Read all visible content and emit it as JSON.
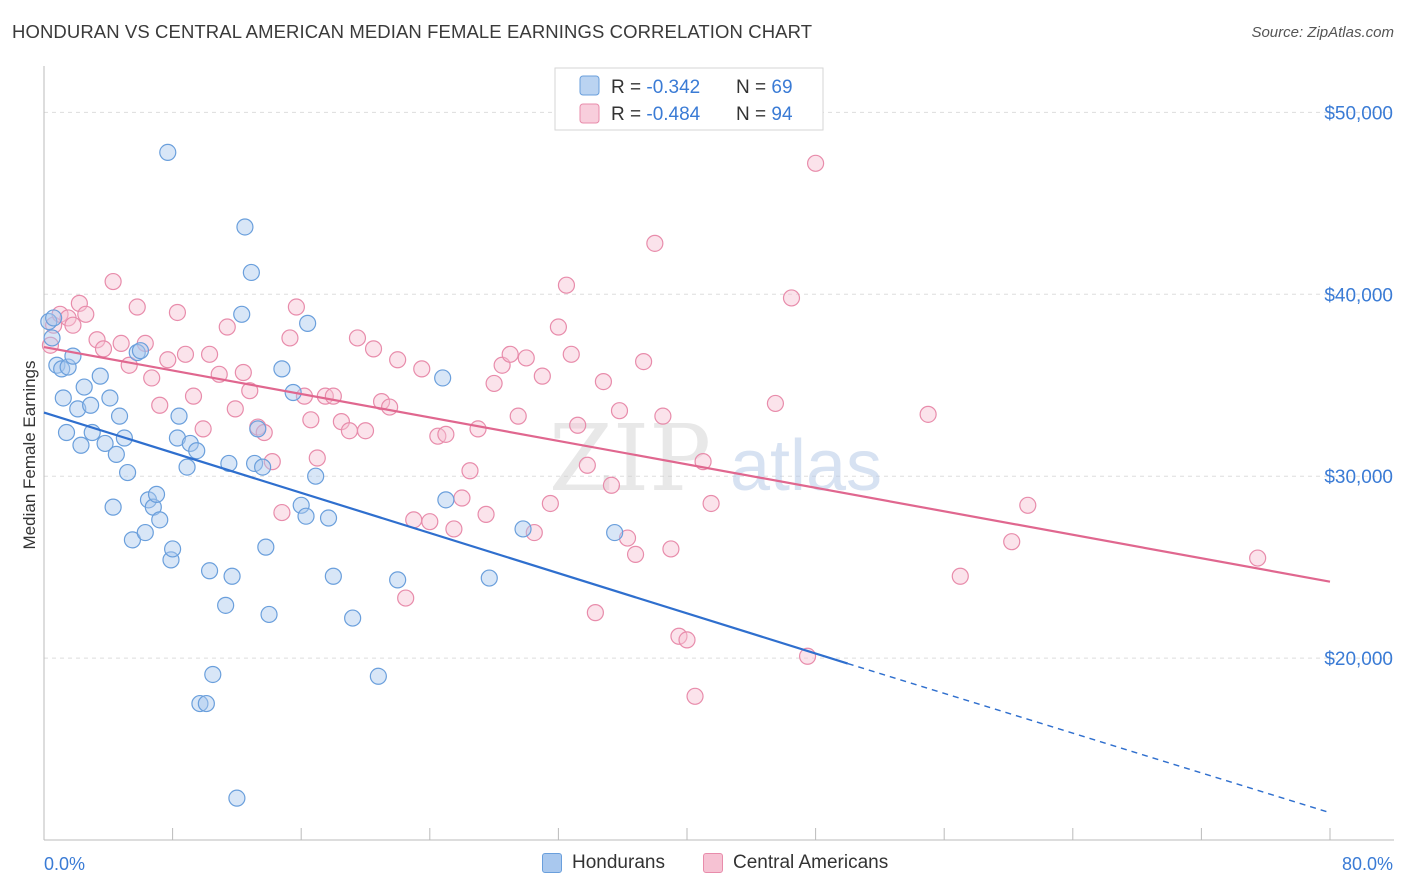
{
  "header": {
    "title": "HONDURAN VS CENTRAL AMERICAN MEDIAN FEMALE EARNINGS CORRELATION CHART",
    "source": "Source: ZipAtlas.com"
  },
  "watermark": {
    "zip": "ZIP",
    "atlas": "atlas"
  },
  "legend_top": [
    {
      "r_label": "R = ",
      "r_value": "-0.342",
      "n_label": "N = ",
      "n_value": "69"
    },
    {
      "r_label": "R = ",
      "r_value": "-0.484",
      "n_label": "N = ",
      "n_value": "94"
    }
  ],
  "legend_bottom": [
    {
      "label": "Hondurans"
    },
    {
      "label": "Central Americans"
    }
  ],
  "colors": {
    "blue_stroke": "#6a9fdc",
    "blue_fill": "#a9c8ee",
    "blue_line": "#2f6fce",
    "pink_stroke": "#e88cab",
    "pink_fill": "#f6c2d3",
    "pink_line": "#e0678f",
    "value_text": "#3a7bd5",
    "grid": "#dddddd"
  },
  "chart_data": {
    "type": "scatter",
    "title": "HONDURAN VS CENTRAL AMERICAN MEDIAN FEMALE EARNINGS CORRELATION CHART",
    "xlabel": "",
    "ylabel": "Median Female Earnings",
    "xlim": [
      0,
      80
    ],
    "ylim": [
      10000,
      52000
    ],
    "x_tick_labels": [
      "0.0%",
      "80.0%"
    ],
    "y_ticks": [
      20000,
      30000,
      40000,
      50000
    ],
    "y_tick_labels": [
      "$20,000",
      "$30,000",
      "$40,000",
      "$50,000"
    ],
    "grid": true,
    "legend_position": "top-center",
    "series": [
      {
        "name": "Hondurans",
        "r": -0.342,
        "n": 69,
        "trend": {
          "x0": 0,
          "y0": 33500,
          "x1": 50,
          "y1": 19700,
          "dash_to_x": 80,
          "dash_to_y": 11500
        },
        "points": [
          [
            0.3,
            38500
          ],
          [
            0.5,
            37600
          ],
          [
            0.6,
            38700
          ],
          [
            0.8,
            36100
          ],
          [
            1.1,
            35900
          ],
          [
            1.2,
            34300
          ],
          [
            1.4,
            32400
          ],
          [
            1.5,
            36000
          ],
          [
            1.8,
            36600
          ],
          [
            2.1,
            33700
          ],
          [
            2.3,
            31700
          ],
          [
            2.5,
            34900
          ],
          [
            2.9,
            33900
          ],
          [
            3.0,
            32400
          ],
          [
            3.5,
            35500
          ],
          [
            3.8,
            31800
          ],
          [
            4.1,
            34300
          ],
          [
            4.3,
            28300
          ],
          [
            4.5,
            31200
          ],
          [
            4.7,
            33300
          ],
          [
            5.0,
            32100
          ],
          [
            5.2,
            30200
          ],
          [
            5.5,
            26500
          ],
          [
            5.8,
            36800
          ],
          [
            6.0,
            36900
          ],
          [
            6.3,
            26900
          ],
          [
            6.5,
            28700
          ],
          [
            6.8,
            28300
          ],
          [
            7.0,
            29000
          ],
          [
            7.2,
            27600
          ],
          [
            7.7,
            47800
          ],
          [
            7.9,
            25400
          ],
          [
            8.0,
            26000
          ],
          [
            8.3,
            32100
          ],
          [
            8.4,
            33300
          ],
          [
            8.9,
            30500
          ],
          [
            9.1,
            31800
          ],
          [
            9.5,
            31400
          ],
          [
            9.7,
            17500
          ],
          [
            10.1,
            17500
          ],
          [
            10.3,
            24800
          ],
          [
            10.5,
            19100
          ],
          [
            11.3,
            22900
          ],
          [
            11.5,
            30700
          ],
          [
            11.7,
            24500
          ],
          [
            12.0,
            12300
          ],
          [
            12.3,
            38900
          ],
          [
            12.5,
            43700
          ],
          [
            12.9,
            41200
          ],
          [
            13.1,
            30700
          ],
          [
            13.3,
            32600
          ],
          [
            13.6,
            30500
          ],
          [
            13.8,
            26100
          ],
          [
            14.0,
            22400
          ],
          [
            14.8,
            35900
          ],
          [
            15.5,
            34600
          ],
          [
            16.0,
            28400
          ],
          [
            16.3,
            27800
          ],
          [
            16.4,
            38400
          ],
          [
            16.9,
            30000
          ],
          [
            17.7,
            27700
          ],
          [
            18.0,
            24500
          ],
          [
            22.0,
            24300
          ],
          [
            24.8,
            35400
          ],
          [
            25.0,
            28700
          ],
          [
            27.7,
            24400
          ],
          [
            19.2,
            22200
          ],
          [
            20.8,
            19000
          ],
          [
            29.8,
            27100
          ],
          [
            35.5,
            26900
          ]
        ]
      },
      {
        "name": "Central Americans",
        "r": -0.484,
        "n": 94,
        "trend": {
          "x0": 0,
          "y0": 37100,
          "x1": 80,
          "y1": 24200
        },
        "points": [
          [
            0.4,
            37200
          ],
          [
            0.6,
            38300
          ],
          [
            1.0,
            38900
          ],
          [
            1.5,
            38700
          ],
          [
            1.8,
            38300
          ],
          [
            2.2,
            39500
          ],
          [
            2.6,
            38900
          ],
          [
            3.3,
            37500
          ],
          [
            3.7,
            37000
          ],
          [
            4.3,
            40700
          ],
          [
            4.8,
            37300
          ],
          [
            5.3,
            36100
          ],
          [
            5.8,
            39300
          ],
          [
            6.3,
            37300
          ],
          [
            6.7,
            35400
          ],
          [
            7.2,
            33900
          ],
          [
            7.7,
            36400
          ],
          [
            8.3,
            39000
          ],
          [
            8.8,
            36700
          ],
          [
            9.3,
            34400
          ],
          [
            9.9,
            32600
          ],
          [
            10.3,
            36700
          ],
          [
            10.9,
            35600
          ],
          [
            11.4,
            38200
          ],
          [
            11.9,
            33700
          ],
          [
            12.4,
            35700
          ],
          [
            12.8,
            34700
          ],
          [
            13.3,
            32700
          ],
          [
            13.7,
            32400
          ],
          [
            14.2,
            30800
          ],
          [
            14.8,
            28000
          ],
          [
            15.3,
            37600
          ],
          [
            15.7,
            39300
          ],
          [
            16.2,
            34400
          ],
          [
            16.6,
            33100
          ],
          [
            17.0,
            31000
          ],
          [
            17.5,
            34400
          ],
          [
            18.0,
            34400
          ],
          [
            18.5,
            33000
          ],
          [
            19.0,
            32500
          ],
          [
            19.5,
            37600
          ],
          [
            20.0,
            32500
          ],
          [
            20.5,
            37000
          ],
          [
            21.0,
            34100
          ],
          [
            21.5,
            33800
          ],
          [
            22.0,
            36400
          ],
          [
            22.5,
            23300
          ],
          [
            23.0,
            27600
          ],
          [
            23.5,
            35900
          ],
          [
            24.0,
            27500
          ],
          [
            24.5,
            32200
          ],
          [
            25.0,
            32300
          ],
          [
            25.5,
            27100
          ],
          [
            26.0,
            28800
          ],
          [
            26.5,
            30300
          ],
          [
            27.0,
            32600
          ],
          [
            27.5,
            27900
          ],
          [
            28.0,
            35100
          ],
          [
            28.5,
            36100
          ],
          [
            29.0,
            36700
          ],
          [
            29.5,
            33300
          ],
          [
            30.0,
            36500
          ],
          [
            30.5,
            26900
          ],
          [
            31.0,
            35500
          ],
          [
            31.5,
            28500
          ],
          [
            32.0,
            38200
          ],
          [
            32.5,
            40500
          ],
          [
            32.8,
            36700
          ],
          [
            33.2,
            32800
          ],
          [
            33.8,
            30600
          ],
          [
            34.3,
            22500
          ],
          [
            34.8,
            35200
          ],
          [
            35.3,
            29500
          ],
          [
            35.8,
            33600
          ],
          [
            36.3,
            26600
          ],
          [
            36.8,
            25700
          ],
          [
            37.3,
            36300
          ],
          [
            38.0,
            42800
          ],
          [
            38.5,
            33300
          ],
          [
            39.0,
            26000
          ],
          [
            39.5,
            21200
          ],
          [
            40.0,
            21000
          ],
          [
            40.5,
            17900
          ],
          [
            41.0,
            30800
          ],
          [
            41.5,
            28500
          ],
          [
            45.5,
            34000
          ],
          [
            46.5,
            39800
          ],
          [
            47.5,
            20100
          ],
          [
            48.0,
            47200
          ],
          [
            55.0,
            33400
          ],
          [
            57.0,
            24500
          ],
          [
            60.2,
            26400
          ],
          [
            61.2,
            28400
          ],
          [
            75.5,
            25500
          ]
        ]
      }
    ]
  }
}
